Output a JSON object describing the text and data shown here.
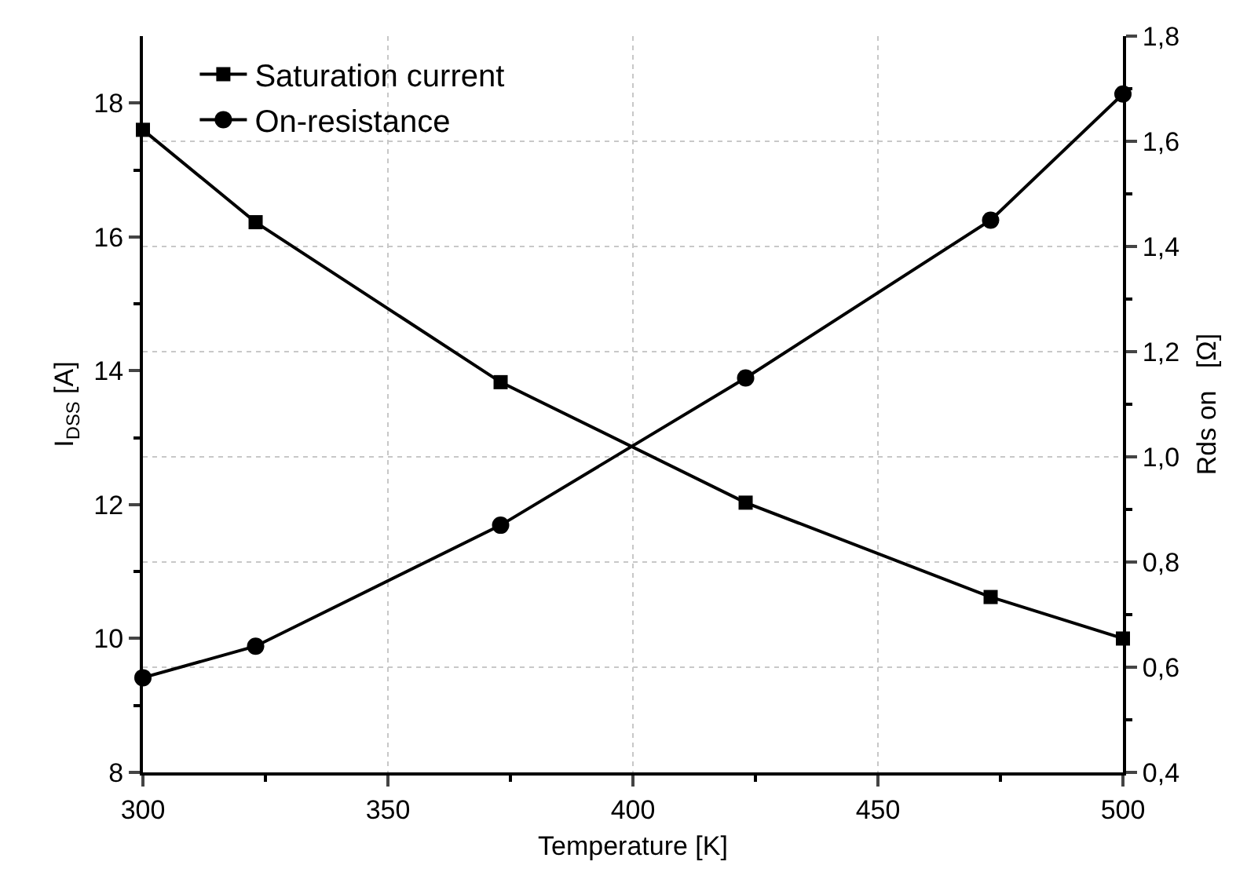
{
  "chart_data": {
    "type": "line",
    "xlabel": "Temperature [K]",
    "ylabel": "I$_{DSS}$ [A]",
    "y2label": "Rds on   [Ω]",
    "x": [
      300,
      323,
      373,
      423,
      473,
      500
    ],
    "series": [
      {
        "name": "Saturation current",
        "color": "#000000",
        "marker": "square",
        "values": [
          17.6,
          16.22,
          13.83,
          12.03,
          10.62,
          10.0
        ]
      },
      {
        "name": "On-resistance",
        "color": "#000000",
        "marker": "circle",
        "axis": "y2",
        "values": [
          0.58,
          0.64,
          0.87,
          1.15,
          1.45,
          1.69
        ]
      }
    ],
    "xlim": [
      300,
      500
    ],
    "xticks": [
      300,
      350,
      400,
      450,
      500
    ],
    "ylim": [
      8,
      19
    ],
    "yticks": [
      8,
      10,
      12,
      14,
      16,
      18
    ],
    "y2lim": [
      0.4,
      1.8
    ],
    "y2ticks": [
      {
        "value": 0.4,
        "label": "0,4"
      },
      {
        "value": 0.6,
        "label": "0,6"
      },
      {
        "value": 0.8,
        "label": "0,8"
      },
      {
        "value": 1.0,
        "label": "1,0"
      },
      {
        "value": 1.2,
        "label": "1,2"
      },
      {
        "value": 1.4,
        "label": "1,4"
      },
      {
        "value": 1.6,
        "label": "1,6"
      },
      {
        "value": 1.8,
        "label": "1,8"
      }
    ],
    "grid": true,
    "legend": "top left",
    "line_style": "solid"
  }
}
